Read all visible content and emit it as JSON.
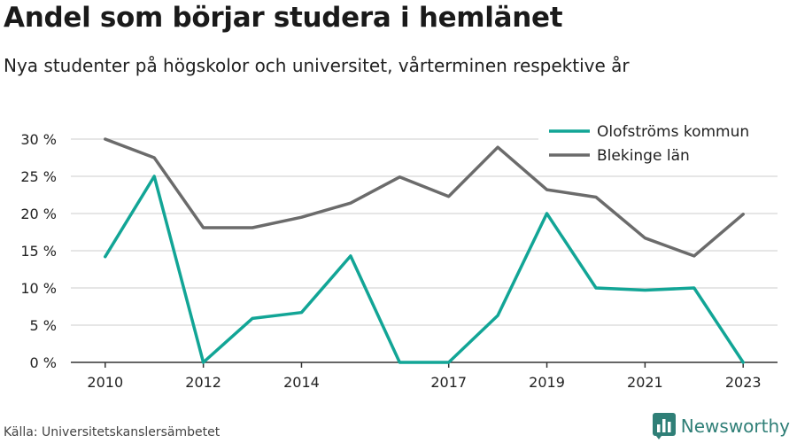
{
  "header": {
    "title": "Andel som börjar studera i hemlänet",
    "subtitle": "Nya studenter på högskolor och universitet, vårterminen respektive år"
  },
  "footer": {
    "source": "Källa: Universitetskanslersämbetet",
    "brand": "Newsworthy",
    "brand_icon": "bar-chart-logo-icon",
    "brand_color": "#2f7f77"
  },
  "chart_data": {
    "type": "line",
    "x": [
      2010,
      2011,
      2012,
      2013,
      2014,
      2015,
      2016,
      2017,
      2018,
      2019,
      2020,
      2021,
      2022,
      2023
    ],
    "x_tick_labels": [
      "2010",
      "2012",
      "2014",
      "2017",
      "2019",
      "2021",
      "2023"
    ],
    "x_tick_values": [
      2010,
      2012,
      2014,
      2017,
      2019,
      2021,
      2023
    ],
    "xlim": [
      2009.3,
      2023.7
    ],
    "ylim": [
      0,
      30
    ],
    "y_ticks": [
      0,
      5,
      10,
      15,
      20,
      25,
      30
    ],
    "y_tick_labels": [
      "0 %",
      "5 %",
      "10 %",
      "15 %",
      "20 %",
      "25 %",
      "30 %"
    ],
    "grid": true,
    "legend_position": "top-right",
    "series": [
      {
        "name": "Olofströms kommun",
        "color": "#12a596",
        "values": [
          14.2,
          25.0,
          0.0,
          5.9,
          6.7,
          14.3,
          0.0,
          0.0,
          6.3,
          20.0,
          10.0,
          9.7,
          10.0,
          0.0
        ]
      },
      {
        "name": "Blekinge län",
        "color": "#6b6b6b",
        "values": [
          30.0,
          27.5,
          18.1,
          18.1,
          19.5,
          21.4,
          24.9,
          22.3,
          28.9,
          23.2,
          22.2,
          16.7,
          14.3,
          19.9
        ]
      }
    ]
  }
}
